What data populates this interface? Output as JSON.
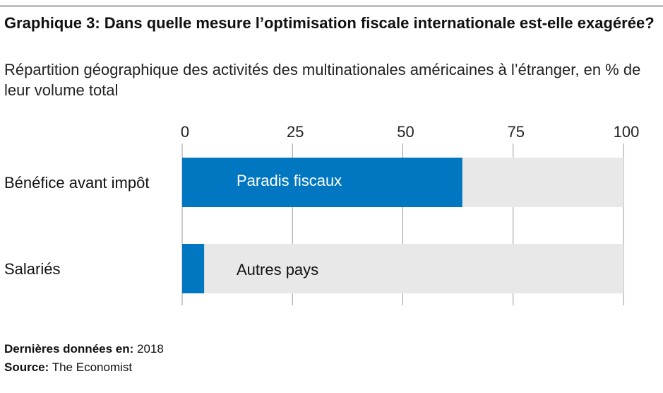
{
  "title": "Graphique 3: Dans quelle mesure l’optimisation fiscale internationale est-elle exagérée?",
  "subtitle": "Répartition géographique des activités des multinationales américaines à l’étranger, en % de leur volume total",
  "footer": {
    "date_label": "Dernières données en:",
    "date_value": "2018",
    "source_label": "Source:",
    "source_value": "The Economist"
  },
  "colors": {
    "tax_havens": "#0077c0",
    "other": "#e8e8e8",
    "grid": "#9a9a9a"
  },
  "chart_data": {
    "type": "bar",
    "orientation": "horizontal",
    "stacked": true,
    "categories": [
      "Bénéfice avant impôt",
      "Salariés"
    ],
    "series": [
      {
        "name": "Paradis fiscaux",
        "values": [
          63.5,
          5
        ]
      },
      {
        "name": "Autres pays",
        "values": [
          36.5,
          95
        ]
      }
    ],
    "xlim": [
      0,
      100
    ],
    "xticks": [
      "0",
      "25",
      "50",
      "75",
      "100"
    ],
    "grid": true,
    "legend": "inline labels"
  }
}
